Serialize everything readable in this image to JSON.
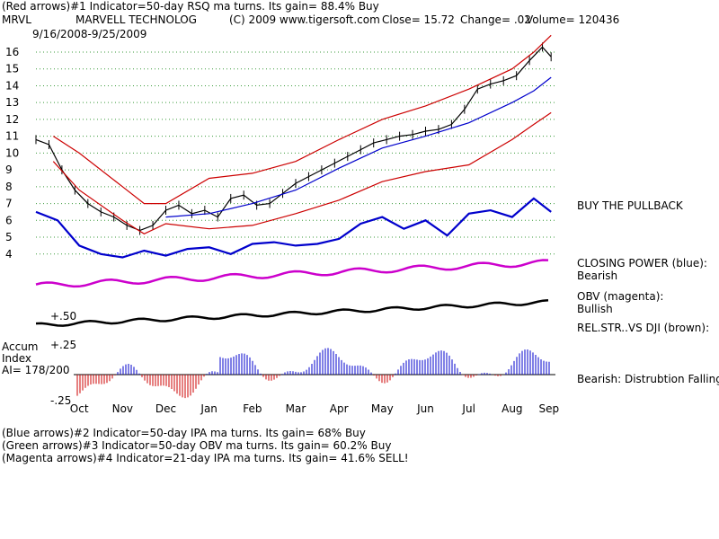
{
  "header": {
    "line1": "(Red arrows)#1 Indicator=50-day RSQ ma turns. Its gain= 88.4% Buy",
    "ticker": "MRVL",
    "company": "MARVELL TECHNOLOG",
    "copyright": "(C) 2009 www.tigersoft.com",
    "close_label": "Close= 15.72",
    "change_label": "Change= .02",
    "volume_label": "Volume= 120436",
    "date_range": "9/16/2008-9/25/2009"
  },
  "labels": {
    "buy_pullback": "BUY THE PULLBACK",
    "closing_power_title": "CLOSING POWER (blue):",
    "closing_power_status": "Bearish",
    "obv_title": "OBV (magenta):",
    "obv_status": "Bullish",
    "relstr_title": "REL.STR..VS DJI (brown):",
    "accum_line1": "Accum",
    "accum_line2": "Index",
    "accum_ai": "AI= 178/200",
    "accum_plus50": "+.50",
    "accum_plus25": "+.25",
    "accum_minus25": "-.25",
    "bearish_note": "Bearish:  Distrubtion Falling."
  },
  "footer": {
    "line1": "(Blue arrows)#2 Indicator=50-day IPA ma turns. Its gain= 68% Buy",
    "line2": "(Green arrows)#3 Indicator=50-day OBV ma turns. Its gain= 60.2% Buy",
    "line3": "(Magenta arrows)#4 Indicator=21-day IPA ma turns. Its gain= 41.6% SELL!"
  },
  "chart_data": {
    "type": "line",
    "title": "MARVELL TECHNOLOG (MRVL) 9/16/2008-9/25/2009",
    "y_ticks": [
      4,
      5,
      6,
      7,
      8,
      9,
      10,
      11,
      12,
      13,
      14,
      15,
      16
    ],
    "ylim": [
      3.4,
      16.8
    ],
    "x_ticks": [
      "Oct",
      "Nov",
      "Dec",
      "Jan",
      "Feb",
      "Mar",
      "Apr",
      "May",
      "Jun",
      "Jul",
      "Aug",
      "Sep"
    ],
    "xlim": [
      0,
      12
    ],
    "x_tick_positions": [
      1.0,
      2.0,
      3.0,
      4.0,
      5.0,
      6.0,
      7.0,
      8.0,
      9.0,
      10.0,
      11.0,
      11.85
    ],
    "series": [
      {
        "name": "Price (close)",
        "color": "#000000",
        "x": [
          0,
          0.3,
          0.6,
          0.9,
          1.2,
          1.5,
          1.8,
          2.1,
          2.4,
          2.7,
          3.0,
          3.3,
          3.6,
          3.9,
          4.2,
          4.5,
          4.8,
          5.1,
          5.4,
          5.7,
          6.0,
          6.3,
          6.6,
          6.9,
          7.2,
          7.5,
          7.8,
          8.1,
          8.4,
          8.7,
          9.0,
          9.3,
          9.6,
          9.9,
          10.2,
          10.5,
          10.8,
          11.1,
          11.4,
          11.7,
          11.9
        ],
        "y": [
          10.8,
          10.5,
          9.0,
          7.8,
          7.0,
          6.5,
          6.2,
          5.7,
          5.4,
          5.7,
          6.6,
          6.9,
          6.4,
          6.6,
          6.2,
          7.3,
          7.5,
          6.9,
          7.0,
          7.6,
          8.2,
          8.6,
          9.0,
          9.4,
          9.8,
          10.2,
          10.6,
          10.8,
          11.0,
          11.1,
          11.3,
          11.4,
          11.7,
          12.6,
          13.8,
          14.1,
          14.3,
          14.6,
          15.5,
          16.3,
          15.72
        ]
      },
      {
        "name": "Upper band",
        "color": "#cc0000",
        "x": [
          0.4,
          1.0,
          2.0,
          2.5,
          3.0,
          4.0,
          5.0,
          6.0,
          7.0,
          8.0,
          9.0,
          10.0,
          11.0,
          11.5,
          11.9
        ],
        "y": [
          11.0,
          10.0,
          8.0,
          7.0,
          7.0,
          8.5,
          8.8,
          9.5,
          10.8,
          12.0,
          12.8,
          13.8,
          15.0,
          16.0,
          17.0
        ]
      },
      {
        "name": "Lower band",
        "color": "#cc0000",
        "x": [
          0.4,
          1.0,
          2.0,
          2.5,
          3.0,
          4.0,
          5.0,
          6.0,
          7.0,
          8.0,
          9.0,
          10.0,
          11.0,
          11.5,
          11.9
        ],
        "y": [
          9.5,
          7.8,
          6.0,
          5.2,
          5.8,
          5.5,
          5.7,
          6.4,
          7.2,
          8.3,
          8.9,
          9.3,
          10.8,
          11.7,
          12.4
        ]
      },
      {
        "name": "50-day MA",
        "color": "#0000cc",
        "x": [
          3.0,
          4.0,
          5.0,
          6.0,
          7.0,
          8.0,
          9.0,
          10.0,
          11.0,
          11.5,
          11.9
        ],
        "y": [
          6.2,
          6.4,
          7.0,
          7.8,
          9.1,
          10.3,
          11.0,
          11.8,
          13.0,
          13.7,
          14.5
        ]
      },
      {
        "name": "Closing Power (blue)",
        "color": "#0000cc",
        "x": [
          0,
          0.5,
          1.0,
          1.5,
          2.0,
          2.5,
          3.0,
          3.5,
          4.0,
          4.5,
          5.0,
          5.5,
          6.0,
          6.5,
          7.0,
          7.5,
          8.0,
          8.5,
          9.0,
          9.5,
          10.0,
          10.5,
          11.0,
          11.5,
          11.9
        ],
        "y": [
          6.5,
          6.0,
          4.5,
          4.0,
          3.8,
          4.2,
          3.9,
          4.3,
          4.4,
          4.0,
          4.6,
          4.7,
          4.5,
          4.6,
          4.9,
          5.8,
          6.2,
          5.5,
          6.0,
          5.1,
          6.4,
          6.6,
          6.2,
          7.3,
          6.5
        ]
      }
    ]
  }
}
